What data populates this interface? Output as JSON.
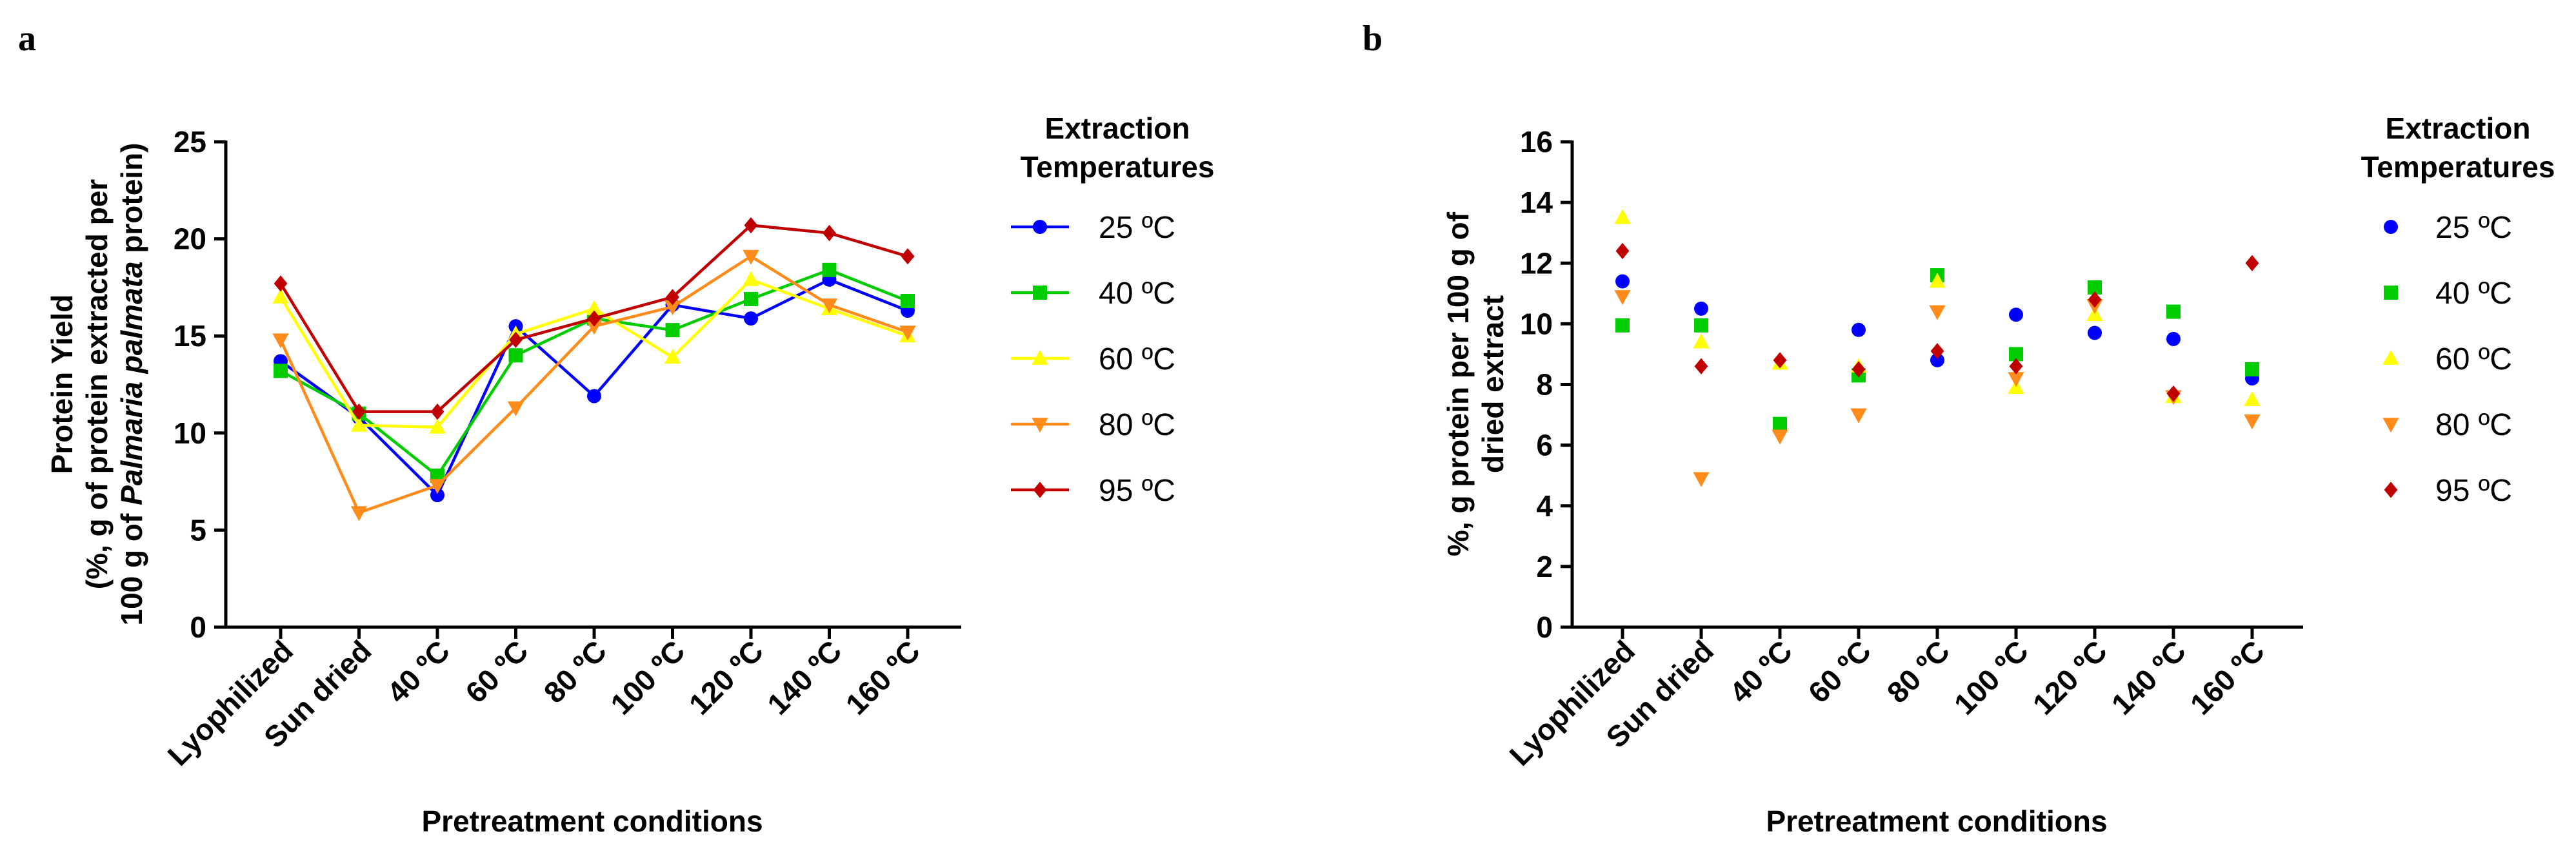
{
  "chart_data": [
    {
      "panel": "a",
      "type": "line",
      "title": "",
      "xlabel": "Pretreatment conditions",
      "ylabel_lines": [
        "Protein Yield",
        "(%, g of protein extracted per",
        "100 g of Palmaria palmata protein)"
      ],
      "ylabel_italic_part": "Palmaria palmata",
      "ylim": [
        0,
        25
      ],
      "yticks": [
        0,
        5,
        10,
        15,
        20,
        25
      ],
      "categories": [
        "Lyophilized",
        "Sun dried",
        "40 ºC",
        "60 ºC",
        "80 ºC",
        "100 ºC",
        "120 ºC",
        "140 ºC",
        "160 ºC"
      ],
      "legend_title": [
        "Extraction",
        "Temperatures"
      ],
      "series": [
        {
          "name": "25 ºC",
          "color": "#0000ff",
          "marker": "circle",
          "values": [
            13.7,
            10.8,
            6.8,
            15.5,
            11.9,
            16.6,
            15.9,
            17.9,
            16.3
          ]
        },
        {
          "name": "40 ºC",
          "color": "#00cc00",
          "marker": "square",
          "values": [
            13.2,
            11.0,
            7.8,
            14.0,
            15.9,
            15.3,
            16.9,
            18.4,
            16.8
          ]
        },
        {
          "name": "60 ºC",
          "color": "#ffff00",
          "marker": "triangle-up",
          "values": [
            17.0,
            10.4,
            10.3,
            15.1,
            16.4,
            13.9,
            17.9,
            16.4,
            15.0
          ]
        },
        {
          "name": "80 ºC",
          "color": "#ff8c1a",
          "marker": "triangle-down",
          "values": [
            14.8,
            5.9,
            7.3,
            11.3,
            15.5,
            16.5,
            19.1,
            16.6,
            15.2
          ]
        },
        {
          "name": "95 ºC",
          "color": "#c00000",
          "marker": "diamond",
          "values": [
            17.7,
            11.1,
            11.1,
            14.8,
            15.9,
            17.0,
            20.7,
            20.3,
            19.1
          ]
        }
      ]
    },
    {
      "panel": "b",
      "type": "scatter",
      "title": "",
      "xlabel": "Pretreatment conditions",
      "ylabel_lines": [
        "%, g protein per 100 g of",
        "dried extract"
      ],
      "ylim": [
        0,
        16
      ],
      "yticks": [
        0,
        2,
        4,
        6,
        8,
        10,
        12,
        14,
        16
      ],
      "categories": [
        "Lyophilized",
        "Sun dried",
        "40 ºC",
        "60 ºC",
        "80 ºC",
        "100 ºC",
        "120 ºC",
        "140 ºC",
        "160 ºC"
      ],
      "legend_title": [
        "Extraction",
        "Temperatures"
      ],
      "series": [
        {
          "name": "25 ºC",
          "color": "#0000ff",
          "marker": "circle",
          "values": [
            11.4,
            10.5,
            6.6,
            9.8,
            8.8,
            10.3,
            9.7,
            9.5,
            8.2
          ]
        },
        {
          "name": "40 ºC",
          "color": "#00cc00",
          "marker": "square",
          "values": [
            9.95,
            9.95,
            6.7,
            8.3,
            11.6,
            9.0,
            11.2,
            10.4,
            8.5
          ]
        },
        {
          "name": "60 ºC",
          "color": "#ffff00",
          "marker": "triangle-up",
          "values": [
            13.5,
            9.4,
            8.7,
            8.6,
            11.4,
            7.9,
            10.3,
            7.6,
            7.5
          ]
        },
        {
          "name": "80 ºC",
          "color": "#ff8c1a",
          "marker": "triangle-down",
          "values": [
            10.9,
            4.9,
            6.3,
            7.0,
            10.4,
            8.2,
            10.6,
            7.6,
            6.8
          ]
        },
        {
          "name": "95 ºC",
          "color": "#c00000",
          "marker": "diamond",
          "values": [
            12.4,
            8.6,
            8.8,
            8.5,
            9.1,
            8.6,
            10.8,
            7.7,
            12.0
          ]
        }
      ]
    }
  ]
}
